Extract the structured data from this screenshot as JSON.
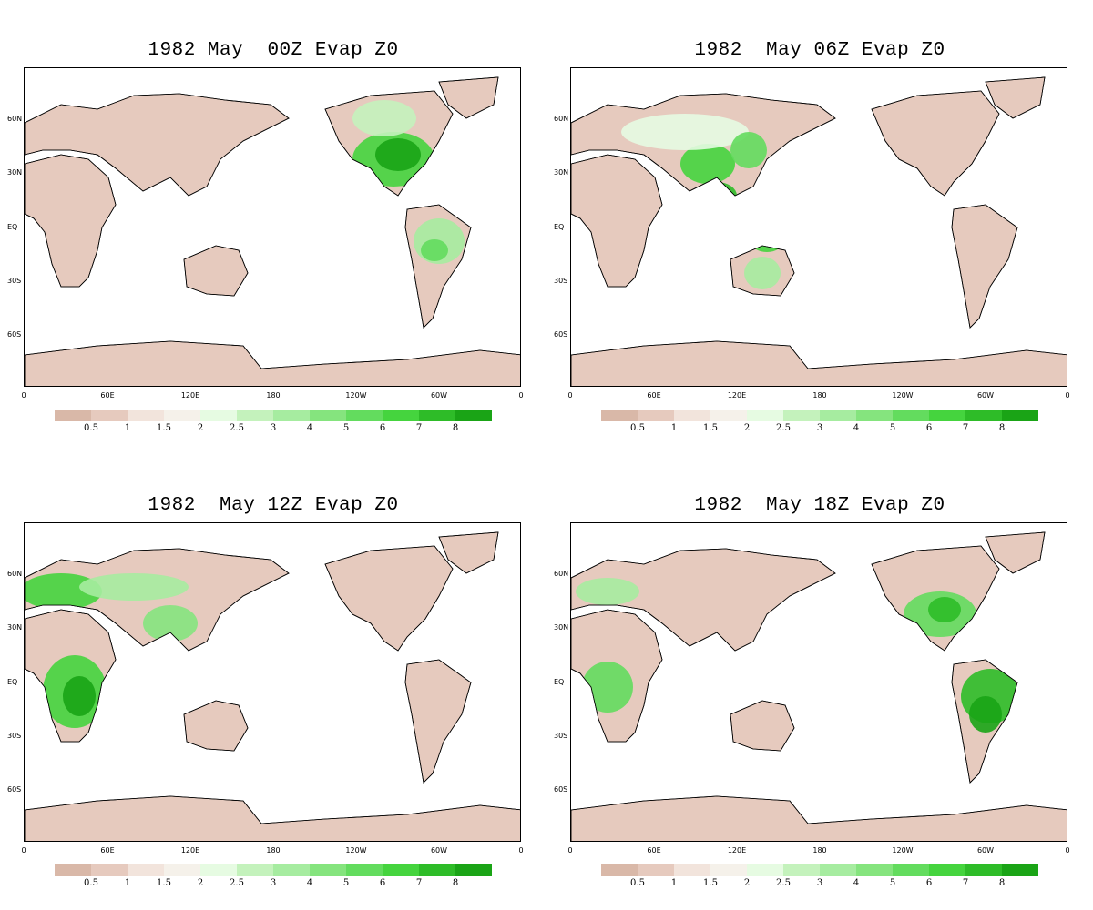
{
  "panels": [
    {
      "id": "p00",
      "title": "1982 May  00Z Evap Z0",
      "hotspots": "americas"
    },
    {
      "id": "p06",
      "title": "1982  May 06Z Evap Z0",
      "hotspots": "asia"
    },
    {
      "id": "p12",
      "title": "1982  May 12Z Evap Z0",
      "hotspots": "europe-africa"
    },
    {
      "id": "p18",
      "title": "1982  May 18Z Evap Z0",
      "hotspots": "americas-south"
    }
  ],
  "lat_labels": [
    "60N",
    "30N",
    "EQ",
    "30S",
    "60S"
  ],
  "lon_labels": [
    "0",
    "60E",
    "120E",
    "180",
    "120W",
    "60W",
    "0"
  ],
  "colorbar": {
    "labels": [
      "0.5",
      "1",
      "1.5",
      "2",
      "2.5",
      "3",
      "4",
      "5",
      "6",
      "7",
      "8"
    ],
    "colors": [
      "#d9b8a8",
      "#e6cabe",
      "#f2e4dc",
      "#f5f1ea",
      "#e6fbe2",
      "#c4f2bc",
      "#a6eca0",
      "#85e47e",
      "#63dc5e",
      "#45d43e",
      "#2ebc28",
      "#1aa416"
    ]
  }
}
